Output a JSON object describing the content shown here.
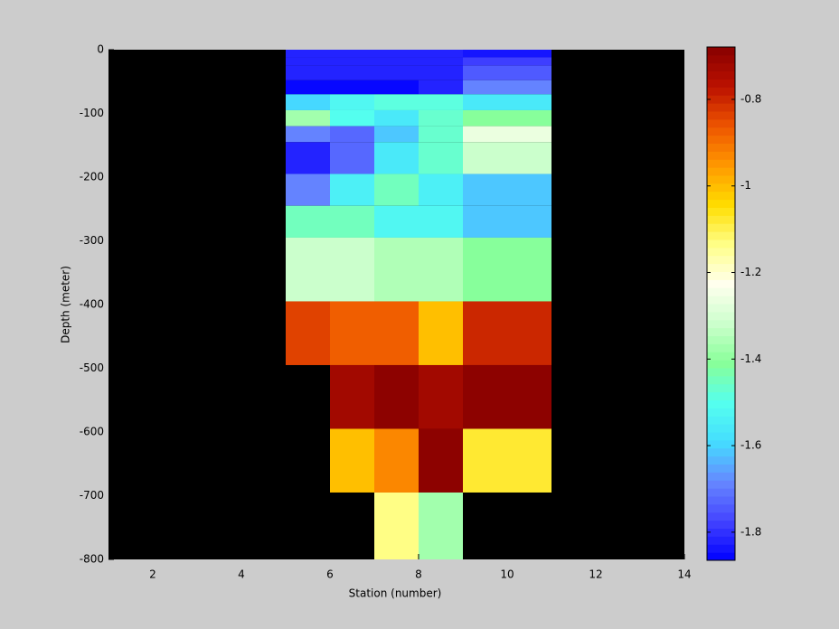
{
  "chart_data": {
    "type": "heatmap",
    "xlabel": "Station (number)",
    "ylabel": "Depth (meter)",
    "x_edges": [
      5,
      6,
      7,
      8,
      9,
      11
    ],
    "y_edges": [
      0,
      -12,
      -25,
      -48,
      -70,
      -95,
      -120,
      -145,
      -195,
      -245,
      -295,
      -395,
      -495,
      -595,
      -695,
      -800
    ],
    "values": [
      [
        -1.82,
        -1.82,
        -1.82,
        -1.82,
        -1.84
      ],
      [
        -1.82,
        -1.82,
        -1.82,
        -1.82,
        -1.78
      ],
      [
        -1.82,
        -1.82,
        -1.82,
        -1.82,
        -1.74
      ],
      [
        -1.86,
        -1.86,
        -1.86,
        -1.82,
        -1.68
      ],
      [
        -1.6,
        -1.52,
        -1.48,
        -1.48,
        -1.56
      ],
      [
        -1.38,
        -1.5,
        -1.56,
        -1.46,
        -1.41
      ],
      [
        -1.68,
        -1.72,
        -1.62,
        -1.46,
        -1.27
      ],
      [
        -1.81,
        -1.73,
        -1.56,
        -1.46,
        -1.32
      ],
      [
        -1.68,
        -1.54,
        -1.44,
        -1.54,
        -1.62
      ],
      [
        -1.44,
        -1.44,
        -1.52,
        -1.52,
        -1.62
      ],
      [
        -1.32,
        -1.32,
        -1.36,
        -1.36,
        -1.41
      ],
      [
        -0.83,
        -0.88,
        -0.88,
        -1.0,
        -0.8
      ],
      [
        null,
        -0.72,
        -0.69,
        -0.72,
        -0.69
      ],
      [
        null,
        -1.0,
        -0.93,
        -0.69,
        -1.08
      ],
      [
        null,
        null,
        -1.13,
        -1.38,
        null
      ]
    ],
    "xlim": [
      1,
      14
    ],
    "ylim": [
      -800,
      0
    ],
    "xticks": [
      2,
      4,
      6,
      8,
      10,
      12,
      14
    ],
    "yticks": [
      0,
      -100,
      -200,
      -300,
      -400,
      -500,
      -600,
      -700,
      -800
    ],
    "clim": [
      -1.865,
      -0.679
    ],
    "cticks": [
      -0.8,
      -1,
      -1.2,
      -1.4,
      -1.6,
      -1.8
    ],
    "colormap": [
      "#0000ff",
      "#4444ff",
      "#6688ff",
      "#44ddff",
      "#55ffee",
      "#88ff99",
      "#ccffcc",
      "#ffffee",
      "#ffff88",
      "#ffdd00",
      "#ff9900",
      "#ee5500",
      "#bb1100",
      "#880000"
    ],
    "background": "#000000"
  }
}
